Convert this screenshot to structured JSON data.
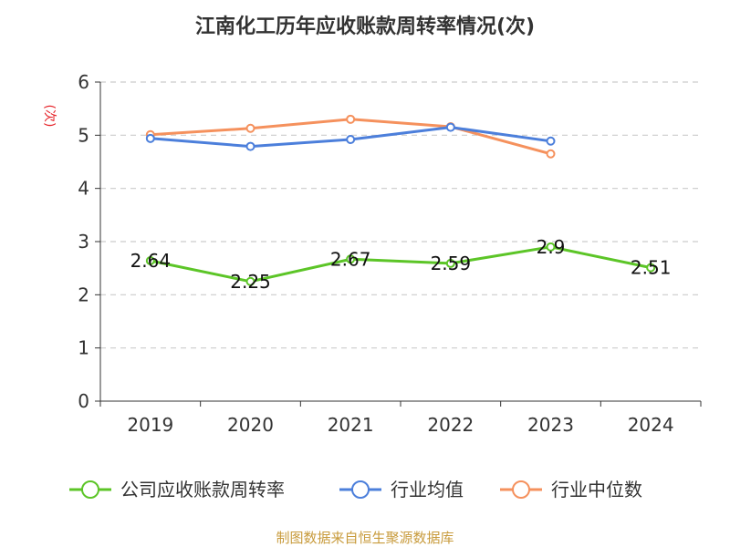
{
  "chart_data": {
    "type": "line",
    "title": "江南化工历年应收账款周转率情况(次)",
    "ylabel": "(次)",
    "xlabel": "",
    "categories": [
      "2019",
      "2020",
      "2021",
      "2022",
      "2023",
      "2024"
    ],
    "ylim": [
      0,
      6
    ],
    "yticks": [
      "0",
      "1",
      "2",
      "3",
      "4",
      "5",
      "6"
    ],
    "grid": true,
    "legend_position": "bottom",
    "series": [
      {
        "name": "公司应收账款周转率",
        "color": "#5cc527",
        "values": [
          2.64,
          2.25,
          2.67,
          2.59,
          2.9,
          2.51
        ],
        "labels": [
          "2.64",
          "2.25",
          "2.67",
          "2.59",
          "2.9",
          "2.51"
        ]
      },
      {
        "name": "行业均值",
        "color": "#4c7fdb",
        "values": [
          4.94,
          4.79,
          4.92,
          5.15,
          4.89,
          null
        ]
      },
      {
        "name": "行业中位数",
        "color": "#f5915d",
        "values": [
          5.01,
          5.13,
          5.3,
          5.16,
          4.65,
          null
        ]
      }
    ]
  },
  "footer": {
    "source": "制图数据来自恒生聚源数据库",
    "color": "#c89b3c"
  },
  "colors": {
    "ylabel": "#e6242a",
    "axis": "#333333",
    "grid": "#cccccc"
  }
}
